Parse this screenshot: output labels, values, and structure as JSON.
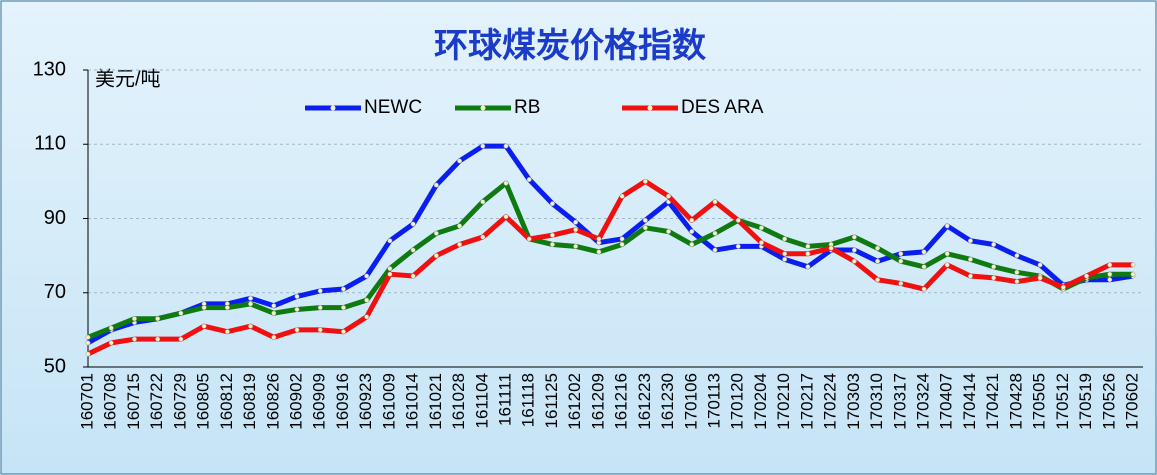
{
  "chart_data": {
    "type": "line",
    "title": "环球煤炭价格指数",
    "y_label": "美元/吨",
    "categories": [
      "160701",
      "160708",
      "160715",
      "160722",
      "160729",
      "160805",
      "160812",
      "160819",
      "160826",
      "160902",
      "160909",
      "160916",
      "160923",
      "161009",
      "161014",
      "161021",
      "161028",
      "161104",
      "161111",
      "161118",
      "161125",
      "161202",
      "161209",
      "161216",
      "161223",
      "161230",
      "170106",
      "170113",
      "170120",
      "170204",
      "170210",
      "170217",
      "170224",
      "170303",
      "170310",
      "170317",
      "170324",
      "170407",
      "170414",
      "170421",
      "170428",
      "170505",
      "170512",
      "170519",
      "170526",
      "170602"
    ],
    "series": [
      {
        "name": "NEWC",
        "color": "#0a1ef0",
        "values": [
          56.5,
          60,
          62,
          63,
          64.5,
          67,
          67,
          68.5,
          66.5,
          69,
          70.5,
          71,
          74.5,
          84,
          88.5,
          99,
          105.5,
          109.5,
          109.5,
          100.5,
          94,
          89,
          83.5,
          84.5,
          89.5,
          94.5,
          86.5,
          81.5,
          82.5,
          82.5,
          79,
          77,
          81.5,
          81.5,
          78.5,
          80.5,
          81,
          88,
          84,
          83,
          80,
          77.5,
          72,
          73.5,
          73.5,
          74.5
        ]
      },
      {
        "name": "RB",
        "color": "#0e7a10",
        "values": [
          58,
          60.5,
          63,
          63,
          64.5,
          66,
          66,
          67,
          64.5,
          65.5,
          66,
          66,
          68,
          76.5,
          81.5,
          86,
          88,
          94.5,
          99.5,
          84.5,
          83,
          82.5,
          81,
          83,
          87.5,
          86.5,
          83,
          86,
          89.5,
          87.5,
          84.5,
          82.5,
          83,
          85,
          82,
          78.5,
          77,
          80.5,
          79,
          77,
          75.5,
          74.5,
          71,
          74,
          75,
          75
        ]
      },
      {
        "name": "DES ARA",
        "color": "#f01010",
        "values": [
          53.5,
          56.5,
          57.5,
          57.5,
          57.5,
          61,
          59.5,
          61,
          58,
          60,
          60,
          59.5,
          63.5,
          75,
          74.5,
          80,
          83,
          85,
          90.5,
          84.5,
          85.5,
          87,
          84.5,
          96,
          100,
          96,
          89.5,
          94.5,
          89.5,
          83.5,
          80.5,
          80.5,
          82,
          78.5,
          73.5,
          72.5,
          71,
          77.5,
          74.5,
          74,
          73,
          74,
          71.5,
          74.5,
          77.5,
          77.5
        ]
      }
    ],
    "ylim": [
      50,
      130
    ],
    "yticks": [
      50,
      70,
      90,
      110,
      130
    ],
    "grid": true
  }
}
